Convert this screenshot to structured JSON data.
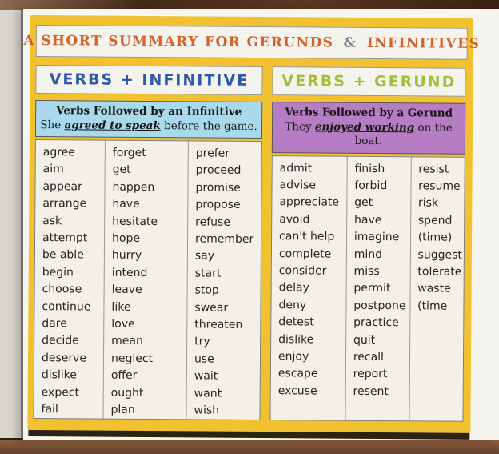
{
  "title": {
    "pre": "A SHORT SUMMARY FOR GERUNDS",
    "amp": "&",
    "post": "INFINITIVES"
  },
  "colors": {
    "frame_yellow": "#f2c130",
    "title_orange": "#d4622b",
    "ampersand_gray": "#7d8691",
    "infinitive_header_blue": "#2e59a6",
    "gerund_header_green": "#a2bf3a",
    "infinitive_box_blue": "#a8d9ec",
    "gerund_box_purple": "#b67cc4"
  },
  "panels": [
    {
      "header": "VERBS + INFINITIVE",
      "sub_title": "Verbs Followed by an Infinitive",
      "example": {
        "pre": "She ",
        "highlight": "agreed to speak",
        "post": " before the game."
      },
      "columns": [
        [
          "agree",
          "aim",
          "appear",
          "arrange",
          "ask",
          "attempt",
          "be able",
          "begin",
          "choose",
          "continue",
          "dare",
          "decide",
          "deserve",
          "dislike",
          "expect",
          "fail"
        ],
        [
          "forget",
          "get",
          "happen",
          "have",
          "hesitate",
          "hope",
          "hurry",
          "intend",
          "leave",
          "like",
          "love",
          "mean",
          "neglect",
          "offer",
          "ought",
          "plan"
        ],
        [
          "prefer",
          "proceed",
          "promise",
          "propose",
          "refuse",
          "remember",
          "say",
          "start",
          "stop",
          "swear",
          "threaten",
          "try",
          "use",
          "wait",
          "want",
          "wish"
        ]
      ]
    },
    {
      "header": "VERBS + GERUND",
      "sub_title": "Verbs Followed by a Gerund",
      "example": {
        "pre": "They ",
        "highlight": "enjoyed working",
        "post": " on the boat."
      },
      "columns": [
        [
          "admit",
          "advise",
          "appreciate",
          "avoid",
          "can't help",
          "complete",
          "consider",
          "delay",
          "deny",
          "detest",
          "dislike",
          "enjoy",
          "escape",
          "excuse"
        ],
        [
          "finish",
          "forbid",
          "get",
          "have",
          "imagine",
          "mind",
          "miss",
          "permit",
          "postpone",
          "practice",
          "quit",
          "recall",
          "report",
          "resent"
        ],
        [
          "resist",
          "resume",
          "risk",
          "spend",
          "(time)",
          "suggest",
          "tolerate",
          "waste",
          "(time"
        ]
      ]
    }
  ]
}
